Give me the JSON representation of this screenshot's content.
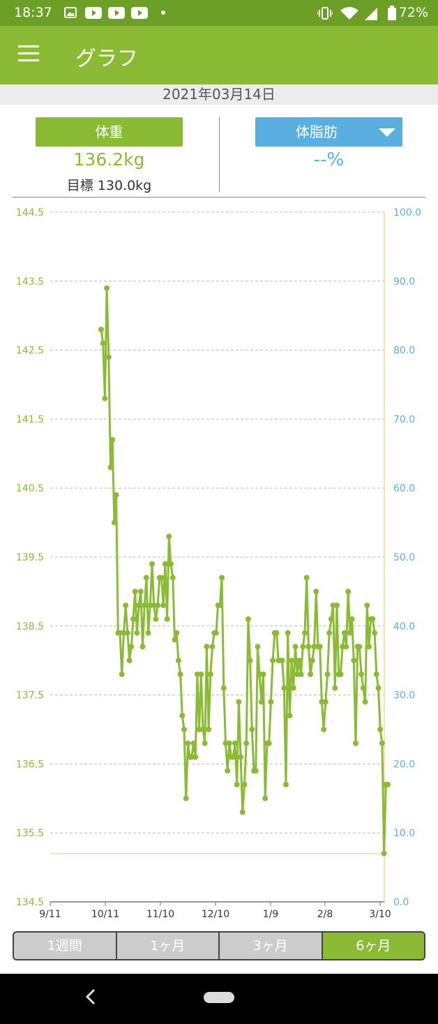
{
  "status": {
    "time": "18:37",
    "battery": "72%"
  },
  "app": {
    "title": "グラフ"
  },
  "date": "2021年03月14日",
  "weight": {
    "button_label": "体重",
    "value": "136.2kg",
    "goal": "目標 130.0kg"
  },
  "fat": {
    "button_label": "体脂肪",
    "value": "--%"
  },
  "range_tabs": [
    {
      "label": "1週間"
    },
    {
      "label": "1ヶ月"
    },
    {
      "label": "3ヶ月"
    },
    {
      "label": "6ヶ月"
    }
  ],
  "colors": {
    "accent": "#8bbb35",
    "fat": "#5aafe0",
    "goal_line": "#f5d9a0"
  },
  "chart_data": {
    "type": "line",
    "left_axis": {
      "min": 134.5,
      "max": 144.5,
      "ticks": [
        "144.5",
        "143.5",
        "142.5",
        "141.5",
        "140.5",
        "139.5",
        "138.5",
        "137.5",
        "136.5",
        "135.5",
        "134.5"
      ]
    },
    "right_axis": {
      "min": 0,
      "max": 100,
      "ticks": [
        "100.0",
        "90.0",
        "80.0",
        "70.0",
        "60.0",
        "50.0",
        "40.0",
        "30.0",
        "20.0",
        "10.0",
        "0.0"
      ]
    },
    "x_ticks": [
      "9/11",
      "10/11",
      "11/10",
      "12/10",
      "1/9",
      "2/8",
      "3/10"
    ],
    "goal_value": 135.2,
    "series": [
      {
        "values": [
          142.8,
          142.6,
          141.8,
          143.4,
          142.4,
          140.8,
          141.2,
          140.0,
          140.4,
          138.4,
          138.4,
          137.8,
          138.4,
          138.8,
          138.4,
          138.0,
          138.2,
          138.6,
          139.0,
          138.4,
          138.8,
          139.0,
          138.2,
          138.8,
          139.2,
          138.4,
          138.8,
          139.4,
          138.8,
          138.6,
          138.8,
          139.2,
          139.2,
          138.8,
          139.4,
          138.6,
          139.8,
          139.4,
          139.2,
          138.3,
          138.4,
          138.0,
          137.8,
          137.2,
          137.0,
          136.0,
          136.8,
          136.6,
          136.6,
          136.8,
          136.6,
          137.8,
          137.0,
          137.8,
          137.0,
          136.8,
          138.2,
          137.0,
          137.8,
          138.2,
          138.4,
          138.4,
          138.8,
          138.8,
          139.2,
          137.6,
          136.8,
          136.4,
          136.8,
          136.6,
          136.6,
          136.8,
          136.2,
          137.4,
          136.6,
          135.8,
          136.2,
          136.8,
          138.6,
          138.0,
          137.0,
          136.4,
          136.4,
          138.2,
          137.8,
          137.4,
          137.8,
          136.0,
          136.8,
          136.8,
          137.4,
          138.0,
          138.4,
          138.4,
          138.0,
          138.0,
          138.0,
          137.6,
          136.2,
          138.4,
          137.2,
          138.0,
          137.6,
          138.2,
          137.8,
          138.0,
          137.8,
          138.2,
          138.4,
          139.2,
          138.2,
          137.8,
          138.0,
          138.2,
          139.0,
          138.2,
          138.2,
          137.4,
          137.0,
          137.4,
          137.8,
          138.4,
          138.6,
          138.8,
          137.6,
          138.8,
          137.8,
          137.8,
          138.2,
          138.4,
          138.2,
          139.0,
          138.4,
          138.6,
          138.0,
          136.8,
          138.2,
          138.2,
          137.8,
          137.6,
          137.4,
          138.8,
          138.2,
          138.6,
          138.6,
          138.4,
          137.8,
          137.6,
          137.0,
          136.8,
          135.2,
          136.2,
          136.2
        ]
      }
    ]
  }
}
